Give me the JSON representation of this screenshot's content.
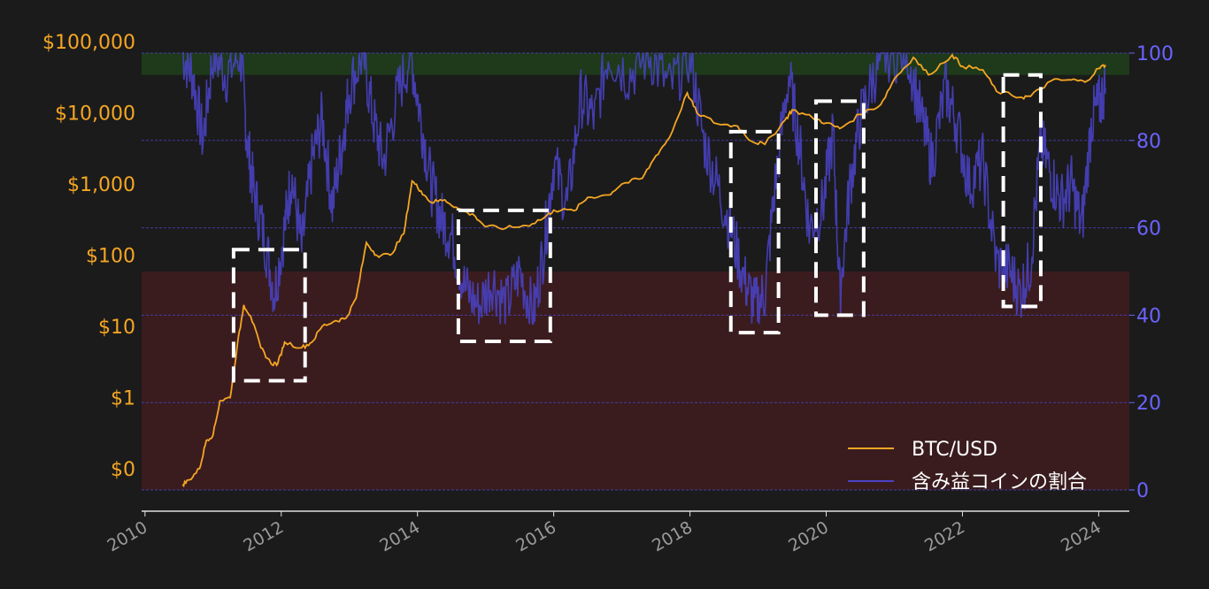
{
  "chart_data": {
    "type": "line",
    "background": "#1b1b1b",
    "grid": "horizontal dashed (right axis)",
    "legend_placement": "bottom-right",
    "x_axis": {
      "ticks": [
        "2010",
        "2012",
        "2014",
        "2016",
        "2018",
        "2020",
        "2022",
        "2024"
      ],
      "range": [
        2009.95,
        2024.45
      ]
    },
    "y_left": {
      "scale": "log",
      "color": "#f5a623",
      "ticks": [
        {
          "value": 0.1,
          "label": "$0"
        },
        {
          "value": 1,
          "label": "$1"
        },
        {
          "value": 10,
          "label": "$10"
        },
        {
          "value": 100,
          "label": "$100"
        },
        {
          "value": 1000,
          "label": "$1,000"
        },
        {
          "value": 10000,
          "label": "$10,000"
        },
        {
          "value": 100000,
          "label": "$100,000"
        }
      ]
    },
    "y_right": {
      "color": "#6a63ff",
      "range": [
        0,
        100
      ],
      "ticks": [
        {
          "value": 0,
          "label": "0"
        },
        {
          "value": 20,
          "label": "20"
        },
        {
          "value": 40,
          "label": "40"
        },
        {
          "value": 60,
          "label": "60"
        },
        {
          "value": 80,
          "label": "80"
        },
        {
          "value": 100,
          "label": "100"
        }
      ]
    },
    "bands": [
      {
        "from": 95,
        "to": 100,
        "color": "#1e3a1a"
      },
      {
        "from": 0,
        "to": 50,
        "color": "#3a1c1e"
      }
    ],
    "series": [
      {
        "name": "BTC/USD",
        "axis": "left",
        "color": "#f5a623",
        "points": [
          [
            2010.55,
            0.06
          ],
          [
            2010.65,
            0.07
          ],
          [
            2010.8,
            0.1
          ],
          [
            2010.9,
            0.25
          ],
          [
            2011.0,
            0.3
          ],
          [
            2011.1,
            0.9
          ],
          [
            2011.25,
            1.0
          ],
          [
            2011.35,
            5
          ],
          [
            2011.45,
            20
          ],
          [
            2011.55,
            14
          ],
          [
            2011.7,
            5
          ],
          [
            2011.85,
            3
          ],
          [
            2011.95,
            3
          ],
          [
            2012.05,
            6
          ],
          [
            2012.3,
            5
          ],
          [
            2012.45,
            6
          ],
          [
            2012.6,
            10
          ],
          [
            2012.8,
            12
          ],
          [
            2012.95,
            13
          ],
          [
            2013.1,
            25
          ],
          [
            2013.25,
            150
          ],
          [
            2013.4,
            100
          ],
          [
            2013.6,
            100
          ],
          [
            2013.8,
            200
          ],
          [
            2013.92,
            1100
          ],
          [
            2014.05,
            800
          ],
          [
            2014.2,
            550
          ],
          [
            2014.4,
            600
          ],
          [
            2014.6,
            450
          ],
          [
            2014.85,
            350
          ],
          [
            2015.0,
            250
          ],
          [
            2015.3,
            240
          ],
          [
            2015.6,
            260
          ],
          [
            2015.85,
            330
          ],
          [
            2016.0,
            430
          ],
          [
            2016.3,
            420
          ],
          [
            2016.5,
            650
          ],
          [
            2016.8,
            700
          ],
          [
            2017.0,
            1000
          ],
          [
            2017.3,
            1200
          ],
          [
            2017.5,
            2500
          ],
          [
            2017.7,
            4500
          ],
          [
            2017.96,
            19000
          ],
          [
            2018.1,
            10000
          ],
          [
            2018.4,
            7000
          ],
          [
            2018.7,
            6500
          ],
          [
            2018.9,
            4000
          ],
          [
            2019.1,
            3600
          ],
          [
            2019.4,
            8000
          ],
          [
            2019.5,
            11000
          ],
          [
            2019.8,
            8500
          ],
          [
            2020.0,
            7200
          ],
          [
            2020.2,
            6000
          ],
          [
            2020.5,
            9500
          ],
          [
            2020.8,
            13000
          ],
          [
            2021.0,
            30000
          ],
          [
            2021.28,
            60000
          ],
          [
            2021.5,
            34000
          ],
          [
            2021.85,
            65000
          ],
          [
            2022.0,
            45000
          ],
          [
            2022.3,
            40000
          ],
          [
            2022.5,
            20000
          ],
          [
            2022.85,
            16500
          ],
          [
            2023.0,
            17000
          ],
          [
            2023.3,
            28000
          ],
          [
            2023.6,
            29000
          ],
          [
            2023.8,
            27000
          ],
          [
            2024.0,
            42000
          ],
          [
            2024.1,
            47000
          ]
        ]
      },
      {
        "name": "含み益コインの割合",
        "axis": "right",
        "color": "#4a43c8",
        "points": [
          [
            2010.55,
            100
          ],
          [
            2010.7,
            95
          ],
          [
            2010.85,
            80
          ],
          [
            2011.0,
            100
          ],
          [
            2011.2,
            95
          ],
          [
            2011.4,
            100
          ],
          [
            2011.5,
            80
          ],
          [
            2011.6,
            68
          ],
          [
            2011.75,
            58
          ],
          [
            2011.9,
            45
          ],
          [
            2012.05,
            60
          ],
          [
            2012.15,
            72
          ],
          [
            2012.3,
            55
          ],
          [
            2012.45,
            75
          ],
          [
            2012.6,
            85
          ],
          [
            2012.75,
            65
          ],
          [
            2012.9,
            80
          ],
          [
            2013.0,
            92
          ],
          [
            2013.2,
            100
          ],
          [
            2013.35,
            85
          ],
          [
            2013.5,
            75
          ],
          [
            2013.7,
            90
          ],
          [
            2013.9,
            100
          ],
          [
            2014.05,
            85
          ],
          [
            2014.2,
            70
          ],
          [
            2014.35,
            62
          ],
          [
            2014.5,
            58
          ],
          [
            2014.7,
            46
          ],
          [
            2014.9,
            42
          ],
          [
            2015.1,
            48
          ],
          [
            2015.3,
            42
          ],
          [
            2015.5,
            50
          ],
          [
            2015.7,
            40
          ],
          [
            2015.85,
            55
          ],
          [
            2016.0,
            75
          ],
          [
            2016.2,
            65
          ],
          [
            2016.4,
            90
          ],
          [
            2016.6,
            85
          ],
          [
            2016.8,
            100
          ],
          [
            2017.1,
            95
          ],
          [
            2017.4,
            100
          ],
          [
            2017.7,
            92
          ],
          [
            2018.0,
            100
          ],
          [
            2018.2,
            80
          ],
          [
            2018.4,
            70
          ],
          [
            2018.6,
            60
          ],
          [
            2018.8,
            48
          ],
          [
            2018.95,
            42
          ],
          [
            2019.1,
            45
          ],
          [
            2019.25,
            70
          ],
          [
            2019.45,
            95
          ],
          [
            2019.6,
            80
          ],
          [
            2019.75,
            60
          ],
          [
            2019.95,
            65
          ],
          [
            2020.1,
            82
          ],
          [
            2020.2,
            45
          ],
          [
            2020.35,
            70
          ],
          [
            2020.5,
            85
          ],
          [
            2020.7,
            95
          ],
          [
            2020.9,
            100
          ],
          [
            2021.2,
            100
          ],
          [
            2021.4,
            85
          ],
          [
            2021.55,
            75
          ],
          [
            2021.75,
            92
          ],
          [
            2021.9,
            85
          ],
          [
            2022.1,
            70
          ],
          [
            2022.3,
            75
          ],
          [
            2022.5,
            52
          ],
          [
            2022.7,
            50
          ],
          [
            2022.85,
            45
          ],
          [
            2023.0,
            52
          ],
          [
            2023.15,
            80
          ],
          [
            2023.3,
            72
          ],
          [
            2023.45,
            66
          ],
          [
            2023.6,
            70
          ],
          [
            2023.75,
            60
          ],
          [
            2023.9,
            85
          ],
          [
            2024.0,
            88
          ],
          [
            2024.1,
            92
          ]
        ]
      }
    ],
    "highlight_boxes": [
      {
        "x0": 2011.3,
        "x1": 2012.35,
        "y0_pct": 25,
        "y1_pct": 55
      },
      {
        "x0": 2014.6,
        "x1": 2015.95,
        "y0_pct": 34,
        "y1_pct": 64
      },
      {
        "x0": 2018.6,
        "x1": 2019.3,
        "y0_pct": 36,
        "y1_pct": 82
      },
      {
        "x0": 2019.85,
        "x1": 2020.55,
        "y0_pct": 40,
        "y1_pct": 89
      },
      {
        "x0": 2022.6,
        "x1": 2023.15,
        "y0_pct": 42,
        "y1_pct": 95
      }
    ],
    "legend": [
      {
        "label": "BTC/USD",
        "color": "#f5a623"
      },
      {
        "label": "含み益コインの割合",
        "color": "#4a43c8"
      }
    ]
  }
}
